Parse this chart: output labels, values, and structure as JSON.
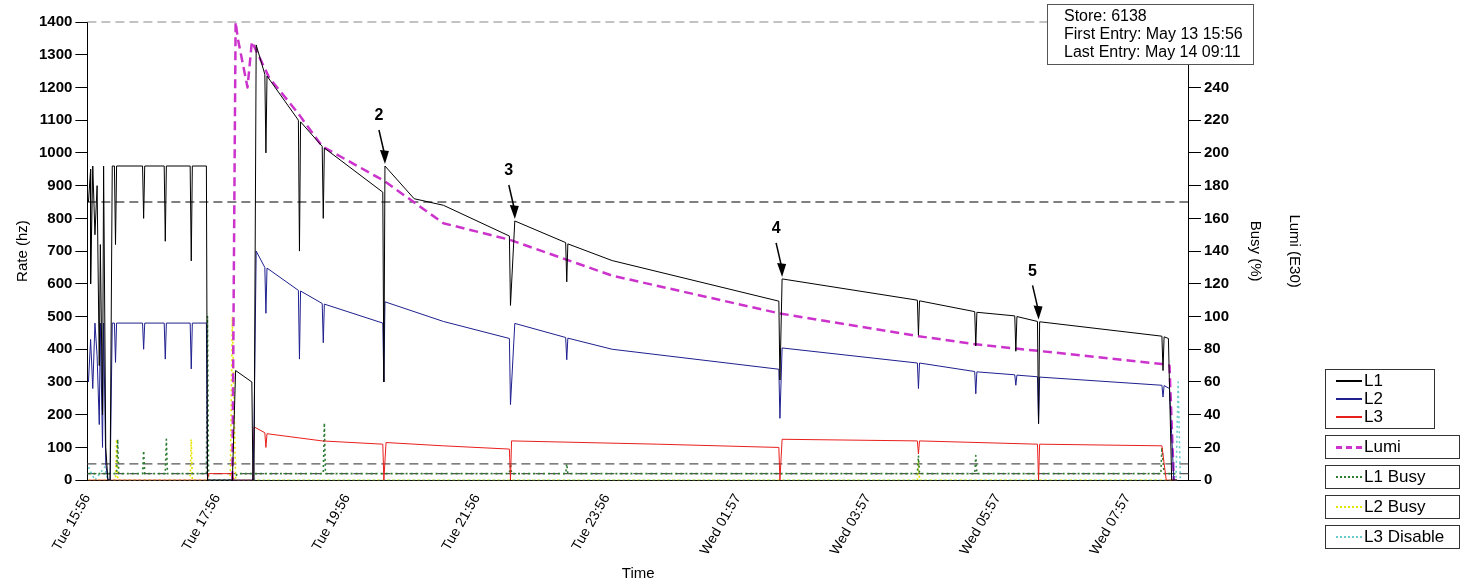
{
  "chart_data": {
    "type": "line",
    "xlabel": "Time",
    "ylabel": "Rate (hz)",
    "y2label": "Lumi (E30)",
    "y3label": "Busy (%)",
    "xlim": [
      "--05-13T15:56",
      "--05-14T08:54"
    ],
    "xticks": [
      {
        "value": "--05-13T15:56",
        "label": "Tue 15:56"
      },
      {
        "value": "--05-13T17:56",
        "label": "Tue 17:56"
      },
      {
        "value": "--05-13T19:56",
        "label": "Tue 19:56"
      },
      {
        "value": "--05-13T21:56",
        "label": "Tue 21:56"
      },
      {
        "value": "--05-13T23:56",
        "label": "Tue 23:56"
      },
      {
        "value": "--05-14T01:57",
        "label": "Wed 01:57"
      },
      {
        "value": "--05-14T03:57",
        "label": "Wed 03:57"
      },
      {
        "value": "--05-14T05:57",
        "label": "Wed 05:57"
      },
      {
        "value": "--05-14T07:57",
        "label": "Wed 07:57"
      }
    ],
    "ylim": [
      0,
      1400
    ],
    "yticks": [
      0,
      100,
      200,
      300,
      400,
      500,
      600,
      700,
      800,
      900,
      1000,
      1100,
      1200,
      1300,
      1400
    ],
    "y2lim": [
      0,
      280
    ],
    "y2ticks": [
      0,
      20,
      40,
      60,
      80,
      100,
      120,
      140,
      160,
      180,
      200,
      220,
      240
    ],
    "grid": false,
    "legend": "right",
    "marker": "none",
    "series": [
      {
        "name": "L1",
        "color": "#000000",
        "line_style": "solid",
        "x": [
          "--05-13T15:57",
          "--05-13T15:59",
          "--05-13T15:59",
          "--05-13T16:01",
          "--05-13T16:03",
          "--05-13T16:05",
          "--05-13T16:07",
          "--05-13T16:08",
          "--05-13T16:10",
          "--05-13T16:11",
          "--05-13T16:13",
          "--05-13T16:15",
          "--05-13T16:17",
          "--05-13T16:19",
          "--05-13T16:21",
          "--05-13T16:22",
          "--05-13T16:23",
          "--05-13T16:47",
          "--05-13T16:48",
          "--05-13T16:49",
          "--05-13T17:07",
          "--05-13T17:08",
          "--05-13T17:09",
          "--05-13T17:31",
          "--05-13T17:32",
          "--05-13T17:33",
          "--05-13T17:46",
          "--05-13T17:47",
          "--05-13T18:10",
          "--05-13T18:13",
          "--05-13T18:28",
          "--05-13T18:29",
          "--05-13T18:30",
          "--05-13T18:32",
          "--05-13T18:40",
          "--05-13T18:41",
          "--05-13T18:42",
          "--05-13T19:11",
          "--05-13T19:12",
          "--05-13T19:13",
          "--05-13T19:33",
          "--05-13T19:34",
          "--05-13T19:35",
          "--05-13T20:29",
          "--05-13T20:30",
          "--05-13T20:31",
          "--05-13T20:58",
          "--05-13T21:25",
          "--05-13T22:26",
          "--05-13T22:27",
          "--05-13T22:31",
          "--05-13T23:18",
          "--05-13T23:19",
          "--05-13T23:20",
          "--05-14T00:01",
          "--05-14T02:35",
          "--05-14T02:36",
          "--05-14T02:38",
          "--05-14T04:43",
          "--05-14T04:44",
          "--05-14T04:45",
          "--05-14T05:36",
          "--05-14T05:37",
          "--05-14T05:38",
          "--05-14T06:13",
          "--05-14T06:14",
          "--05-14T06:15",
          "--05-14T06:34",
          "--05-14T06:35",
          "--05-14T06:36",
          "--05-14T08:29",
          "--05-14T08:30",
          "--05-14T08:31",
          "--05-14T08:35",
          "--05-14T08:38",
          "--05-14T08:43"
        ],
        "values": [
          850,
          950,
          600,
          960,
          750,
          900,
          350,
          720,
          200,
          960,
          100,
          0,
          0,
          960,
          960,
          720,
          960,
          960,
          800,
          960,
          960,
          730,
          960,
          960,
          670,
          960,
          960,
          0,
          0,
          335,
          300,
          0,
          0,
          1330,
          1240,
          1000,
          1235,
          1100,
          700,
          1095,
          1020,
          800,
          1015,
          880,
          300,
          960,
          860,
          840,
          746,
          534,
          792,
          726,
          606,
          722,
          671,
          547,
          306,
          615,
          550,
          443,
          548,
          515,
          410,
          513,
          502,
          394,
          500,
          485,
          173,
          484,
          440,
          335,
          438,
          433,
          0,
          0
        ]
      },
      {
        "name": "L2",
        "color": "#1f1f8f",
        "line_style": "solid",
        "x": [
          "--05-13T15:57",
          "--05-13T15:59",
          "--05-13T16:01",
          "--05-13T16:03",
          "--05-13T16:05",
          "--05-13T16:07",
          "--05-13T16:08",
          "--05-13T16:10",
          "--05-13T16:11",
          "--05-13T16:13",
          "--05-13T16:15",
          "--05-13T16:17",
          "--05-13T16:19",
          "--05-13T16:21",
          "--05-13T16:22",
          "--05-13T16:23",
          "--05-13T16:47",
          "--05-13T16:48",
          "--05-13T16:49",
          "--05-13T17:07",
          "--05-13T17:08",
          "--05-13T17:09",
          "--05-13T17:31",
          "--05-13T17:32",
          "--05-13T17:33",
          "--05-13T17:46",
          "--05-13T17:47",
          "--05-13T18:29",
          "--05-13T18:30",
          "--05-13T18:32",
          "--05-13T18:40",
          "--05-13T18:41",
          "--05-13T18:42",
          "--05-13T19:11",
          "--05-13T19:12",
          "--05-13T19:13",
          "--05-13T19:33",
          "--05-13T19:34",
          "--05-13T19:35",
          "--05-13T20:29",
          "--05-13T20:30",
          "--05-13T20:31",
          "--05-13T21:25",
          "--05-13T22:26",
          "--05-13T22:27",
          "--05-13T22:31",
          "--05-13T23:18",
          "--05-13T23:19",
          "--05-13T23:20",
          "--05-14T00:01",
          "--05-14T02:35",
          "--05-14T02:36",
          "--05-14T02:38",
          "--05-14T04:43",
          "--05-14T04:44",
          "--05-14T04:45",
          "--05-14T05:36",
          "--05-14T05:37",
          "--05-14T05:38",
          "--05-14T06:13",
          "--05-14T06:14",
          "--05-14T06:15",
          "--05-14T06:34",
          "--05-14T06:35",
          "--05-14T06:36",
          "--05-14T08:29",
          "--05-14T08:30",
          "--05-14T08:31",
          "--05-14T08:36",
          "--05-14T08:40",
          "--05-14T08:43"
        ],
        "values": [
          300,
          430,
          280,
          480,
          380,
          170,
          480,
          100,
          480,
          50,
          0,
          0,
          480,
          480,
          360,
          480,
          480,
          400,
          480,
          480,
          370,
          480,
          480,
          340,
          480,
          480,
          0,
          0,
          150,
          700,
          650,
          510,
          648,
          580,
          370,
          578,
          540,
          420,
          538,
          480,
          300,
          545,
          485,
          433,
          231,
          479,
          436,
          368,
          434,
          400,
          339,
          189,
          404,
          358,
          280,
          358,
          332,
          264,
          331,
          322,
          290,
          321,
          316,
          173,
          315,
          290,
          254,
          289,
          280,
          0,
          0
        ]
      },
      {
        "name": "L3",
        "color": "#e8201c",
        "line_style": "solid",
        "x": [
          "--05-13T15:57",
          "--05-13T17:47",
          "--05-13T17:48",
          "--05-13T18:10",
          "--05-13T18:11",
          "--05-13T18:29",
          "--05-13T18:30",
          "--05-13T18:40",
          "--05-13T18:41",
          "--05-13T18:42",
          "--05-13T19:33",
          "--05-13T20:29",
          "--05-13T20:30",
          "--05-13T20:32",
          "--05-13T21:25",
          "--05-13T22:26",
          "--05-13T22:27",
          "--05-13T22:28",
          "--05-14T00:43",
          "--05-14T02:35",
          "--05-14T02:36",
          "--05-14T02:38",
          "--05-14T04:43",
          "--05-14T04:44",
          "--05-14T04:45",
          "--05-14T06:34",
          "--05-14T06:35",
          "--05-14T06:36",
          "--05-14T08:29",
          "--05-14T08:33",
          "--05-14T08:43"
        ],
        "values": [
          0,
          0,
          20,
          20,
          0,
          0,
          163,
          145,
          100,
          142,
          120,
          110,
          0,
          115,
          105,
          95,
          0,
          120,
          110,
          100,
          0,
          125,
          120,
          80,
          120,
          110,
          0,
          110,
          105,
          0,
          0
        ]
      },
      {
        "name": "Lumi",
        "color": "#cc33cc",
        "line_style": "dashed",
        "axis": "y2",
        "x": [
          "--05-13T18:10",
          "--05-13T18:13",
          "--05-13T18:15",
          "--05-13T18:24",
          "--05-13T18:28",
          "--05-13T18:44",
          "--05-13T19:11",
          "--05-13T19:33",
          "--05-13T20:30",
          "--05-13T21:25",
          "--05-13T22:26",
          "--05-14T00:01",
          "--05-14T02:35",
          "--05-14T04:44",
          "--05-14T05:37",
          "--05-14T06:35",
          "--05-14T08:29",
          "--05-14T08:36",
          "--05-14T08:40"
        ],
        "values": [
          0,
          280,
          270,
          240,
          268,
          246,
          224,
          204,
          183,
          157,
          147,
          125,
          102,
          88,
          83,
          79,
          71,
          70,
          0
        ]
      },
      {
        "name": "L1 Busy",
        "color": "#2e7d32",
        "line_style": "dotted",
        "axis": "y2",
        "x": [
          "--05-13T15:57",
          "--05-13T16:23",
          "--05-13T16:24",
          "--05-13T16:25",
          "--05-13T16:47",
          "--05-13T16:48",
          "--05-13T16:49",
          "--05-13T17:08",
          "--05-13T17:09",
          "--05-13T17:10",
          "--05-13T17:46",
          "--05-13T17:47",
          "--05-13T17:48",
          "--05-13T18:10",
          "--05-13T18:15",
          "--05-13T19:34",
          "--05-13T19:35",
          "--05-13T19:36",
          "--05-13T22:26",
          "--05-13T22:27",
          "--05-13T22:28",
          "--05-13T23:18",
          "--05-13T23:19",
          "--05-13T23:20",
          "--05-14T04:43",
          "--05-14T04:44",
          "--05-14T04:45",
          "--05-14T05:36",
          "--05-14T05:37",
          "--05-14T05:38",
          "--05-14T08:28",
          "--05-14T08:29",
          "--05-14T08:31",
          "--05-14T08:43"
        ],
        "values": [
          4,
          4,
          25,
          4,
          4,
          18,
          4,
          4,
          25,
          4,
          4,
          100,
          0,
          0,
          4,
          4,
          35,
          4,
          4,
          10,
          4,
          4,
          10,
          4,
          4,
          15,
          4,
          4,
          15,
          4,
          4,
          20,
          4,
          4
        ]
      },
      {
        "name": "L2 Busy",
        "color": "#e6e600",
        "line_style": "dotted",
        "axis": "y2",
        "x": [
          "--05-13T15:57",
          "--05-13T16:22",
          "--05-13T16:23",
          "--05-13T16:24",
          "--05-13T17:31",
          "--05-13T17:32",
          "--05-13T17:33",
          "--05-13T18:08",
          "--05-13T18:10",
          "--05-13T18:13",
          "--05-14T04:43",
          "--05-14T04:44",
          "--05-14T04:45",
          "--05-14T08:43"
        ],
        "values": [
          0,
          0,
          25,
          0,
          0,
          25,
          0,
          0,
          100,
          0,
          0,
          12,
          0,
          0
        ]
      },
      {
        "name": "L3 Disable",
        "color": "#66cccc",
        "line_style": "dotted",
        "axis": "y2",
        "x": [
          "--05-13T15:57",
          "--05-13T16:03",
          "--05-13T16:12",
          "--05-13T16:15",
          "--05-14T08:42",
          "--05-14T08:44",
          "--05-14T08:46"
        ],
        "values": [
          8,
          0,
          8,
          0,
          0,
          60,
          0
        ]
      }
    ],
    "ref_lines": [
      {
        "axis": "y",
        "value": 1400,
        "color": "#888888",
        "line_style": "dashed"
      },
      {
        "axis": "y",
        "value": 850,
        "color": "#000000",
        "line_style": "dashed"
      },
      {
        "axis": "y",
        "value": 50,
        "color": "#555555",
        "line_style": "dashed"
      },
      {
        "axis": "y",
        "value": 20,
        "color": "#555555",
        "line_style": "dashed"
      }
    ],
    "annotations": [
      {
        "text": "2",
        "x": "--05-13T20:31",
        "y": 960
      },
      {
        "text": "3",
        "x": "--05-13T22:31",
        "y": 792
      },
      {
        "text": "4",
        "x": "--05-14T02:38",
        "y": 615
      },
      {
        "text": "5",
        "x": "--05-14T06:35",
        "y": 485
      },
      "Store: 6138",
      "First Entry: May 13 15:56",
      "Last Entry: May 14 09:11"
    ]
  }
}
